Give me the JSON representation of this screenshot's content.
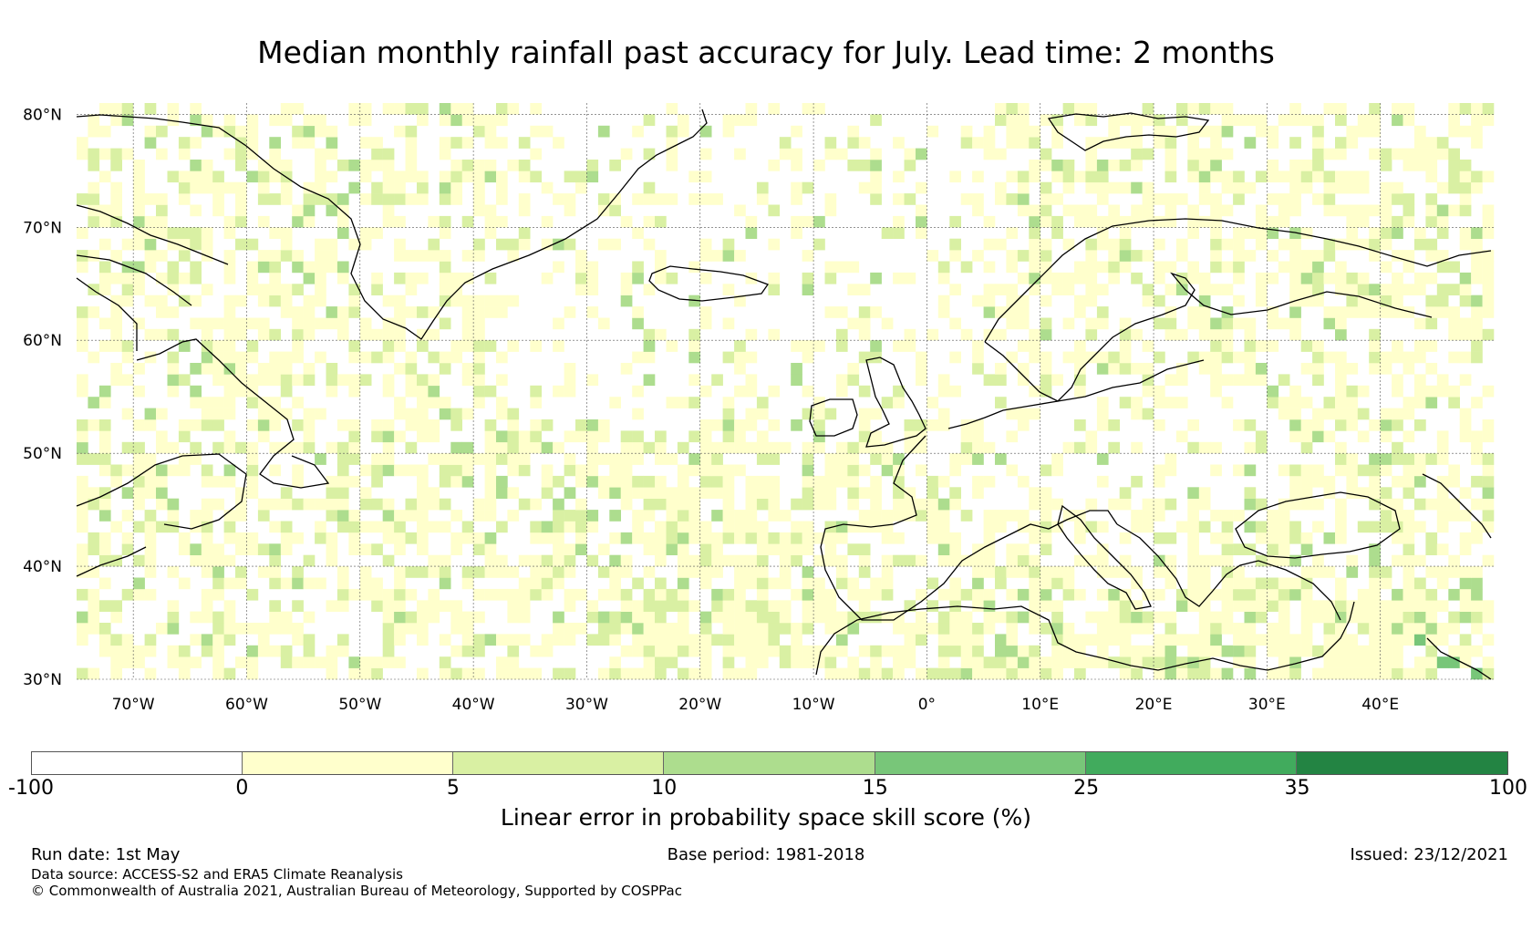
{
  "title": "Median monthly rainfall past accuracy for July. Lead time: 2 months",
  "map": {
    "lon_range": [
      -75,
      50
    ],
    "lat_range": [
      30,
      81
    ],
    "lat_labels": [
      "30°N",
      "40°N",
      "50°N",
      "60°N",
      "70°N",
      "80°N"
    ],
    "lat_values": [
      30,
      40,
      50,
      60,
      70,
      80
    ],
    "lon_labels": [
      "70°W",
      "60°W",
      "50°W",
      "40°W",
      "30°W",
      "20°W",
      "10°W",
      "0°",
      "10°E",
      "20°E",
      "30°E",
      "40°E"
    ],
    "lon_values": [
      -70,
      -60,
      -50,
      -40,
      -30,
      -20,
      -10,
      0,
      10,
      20,
      30,
      40
    ],
    "colors": [
      "#ffffff",
      "#ffffcc",
      "#d9f0a3",
      "#addd8e",
      "#78c679",
      "#41ab5d",
      "#238443"
    ],
    "coastline_color": "#000000"
  },
  "colorbar": {
    "bounds": [
      "-100",
      "0",
      "5",
      "10",
      "15",
      "25",
      "35",
      "100"
    ],
    "colors": [
      "#ffffff",
      "#ffffcc",
      "#d9f0a3",
      "#addd8e",
      "#78c679",
      "#41ab5d",
      "#238443"
    ],
    "label": "Linear error in probability space skill score (%)"
  },
  "footer": {
    "run_date": "Run date: 1st May",
    "base_period": "Base period: 1981-2018",
    "issued": "Issued: 23/12/2021",
    "data_source": "Data source: ACCESS-S2 and ERA5 Climate Reanalysis",
    "copyright": "© Commonwealth of Australia 2021, Australian Bureau of Meteorology, Supported by COSPPac"
  }
}
